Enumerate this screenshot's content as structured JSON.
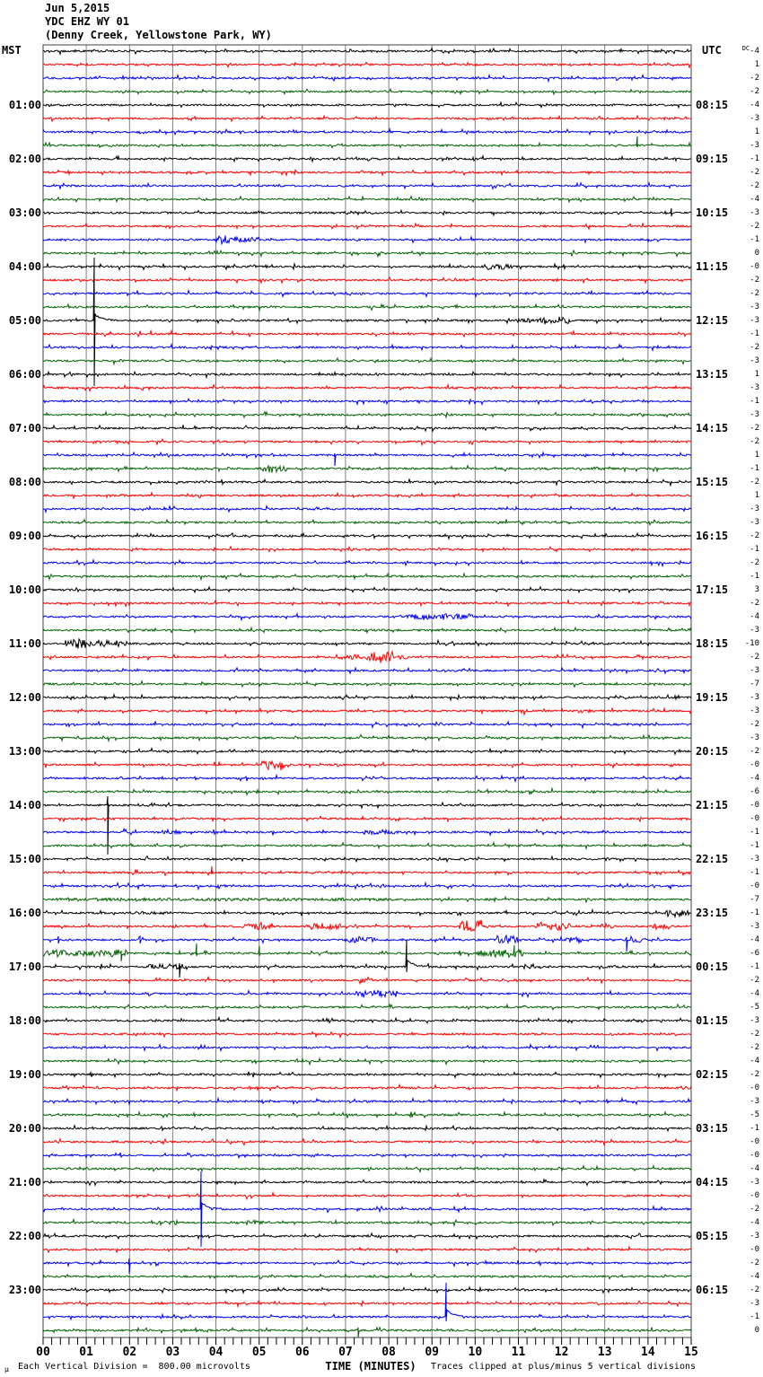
{
  "header": {
    "date": "Jun 5,2015",
    "station": "YDC EHZ WY 01",
    "location": "(Denny Creek, Yellowstone Park, WY)"
  },
  "axes": {
    "left_timezone": "MST",
    "right_timezone": "UTC",
    "x_title": "TIME (MINUTES)",
    "dc_header": "DC"
  },
  "footer": {
    "scale_glyph": "μ",
    "scale_note": "Each Vertical Division =  800.00 microvolts",
    "clip_note": "Traces clipped at plus/minus 5 vertical divisions"
  },
  "chart_data": {
    "type": "line",
    "title": "Helicorder seismogram YDC EHZ WY 01",
    "x_ticks": [
      "00",
      "01",
      "02",
      "03",
      "04",
      "05",
      "06",
      "07",
      "08",
      "09",
      "10",
      "11",
      "12",
      "13",
      "14",
      "15"
    ],
    "x_range_minutes": [
      0,
      15
    ],
    "minutes_per_row": 15,
    "rows_count": 96,
    "trace_spacing_px": 15,
    "clip_divisions": 5,
    "grid_color": "#808080",
    "border_color": "#404040",
    "colors": {
      "k": "#000000",
      "r": "#ff0000",
      "b": "#0000ff",
      "g": "#006400"
    },
    "rows": [
      {
        "c": "k",
        "dc": "-4",
        "dc_prefixed": true
      },
      {
        "c": "r",
        "dc": "1"
      },
      {
        "c": "b",
        "dc": "-2"
      },
      {
        "c": "g",
        "dc": "-2"
      },
      {
        "c": "k",
        "dc": "-4",
        "mst": "01:00",
        "utc": "08:15"
      },
      {
        "c": "r",
        "dc": "-3"
      },
      {
        "c": "b",
        "dc": "1"
      },
      {
        "c": "g",
        "dc": "-3",
        "spikes": [
          [
            13.75,
            10,
            2
          ]
        ]
      },
      {
        "c": "k",
        "dc": "-1",
        "mst": "02:00",
        "utc": "09:15"
      },
      {
        "c": "r",
        "dc": "-2"
      },
      {
        "c": "b",
        "dc": "-2"
      },
      {
        "c": "g",
        "dc": "-4"
      },
      {
        "c": "k",
        "dc": "-3",
        "mst": "03:00",
        "utc": "10:15",
        "spikes": [
          [
            14.54,
            5,
            4
          ]
        ]
      },
      {
        "c": "r",
        "dc": "-2"
      },
      {
        "c": "b",
        "dc": "-1",
        "bursts": [
          [
            4.0,
            4.6,
            6
          ],
          [
            4.6,
            5.05,
            3
          ]
        ]
      },
      {
        "c": "g",
        "dc": "0"
      },
      {
        "c": "k",
        "dc": "-0",
        "mst": "04:00",
        "utc": "11:15",
        "bursts": [
          [
            10.25,
            10.85,
            4
          ]
        ]
      },
      {
        "c": "r",
        "dc": "-2"
      },
      {
        "c": "b",
        "dc": "-2"
      },
      {
        "c": "g",
        "dc": "-3"
      },
      {
        "c": "k",
        "dc": "-3",
        "mst": "05:00",
        "utc": "12:15",
        "spikes": [
          [
            1.18,
            70,
            73
          ]
        ],
        "bursts": [
          [
            10.95,
            11.5,
            3
          ],
          [
            11.5,
            12.25,
            5
          ]
        ]
      },
      {
        "c": "r",
        "dc": "-1"
      },
      {
        "c": "b",
        "dc": "-2"
      },
      {
        "c": "g",
        "dc": "-3"
      },
      {
        "c": "k",
        "dc": "1",
        "mst": "06:00",
        "utc": "13:15"
      },
      {
        "c": "r",
        "dc": "-3"
      },
      {
        "c": "b",
        "dc": "-1"
      },
      {
        "c": "g",
        "dc": "-3"
      },
      {
        "c": "k",
        "dc": "-2",
        "mst": "07:00",
        "utc": "14:15"
      },
      {
        "c": "r",
        "dc": "-2"
      },
      {
        "c": "b",
        "dc": "1",
        "spikes": [
          [
            6.75,
            2,
            12
          ]
        ]
      },
      {
        "c": "g",
        "dc": "-1",
        "bursts": [
          [
            5.0,
            5.65,
            5
          ]
        ]
      },
      {
        "c": "k",
        "dc": "-2",
        "mst": "08:00",
        "utc": "15:15"
      },
      {
        "c": "r",
        "dc": "1"
      },
      {
        "c": "b",
        "dc": "-3"
      },
      {
        "c": "g",
        "dc": "-3"
      },
      {
        "c": "k",
        "dc": "-2",
        "mst": "09:00",
        "utc": "16:15"
      },
      {
        "c": "r",
        "dc": "-1"
      },
      {
        "c": "b",
        "dc": "-2"
      },
      {
        "c": "g",
        "dc": "-1"
      },
      {
        "c": "k",
        "dc": "3",
        "mst": "10:00",
        "utc": "17:15"
      },
      {
        "c": "r",
        "dc": "-2"
      },
      {
        "c": "b",
        "dc": "-4",
        "bursts": [
          [
            8.4,
            9.95,
            4
          ]
        ]
      },
      {
        "c": "g",
        "dc": "-3"
      },
      {
        "c": "k",
        "dc": "-10",
        "mst": "11:00",
        "utc": "18:15",
        "bursts": [
          [
            0.5,
            1.0,
            7
          ],
          [
            1.0,
            1.95,
            4
          ]
        ]
      },
      {
        "c": "r",
        "dc": "-2",
        "bursts": [
          [
            6.7,
            7.5,
            3
          ],
          [
            7.5,
            8.1,
            7
          ],
          [
            8.1,
            8.45,
            3
          ]
        ]
      },
      {
        "c": "b",
        "dc": "-3"
      },
      {
        "c": "g",
        "dc": "-7"
      },
      {
        "c": "k",
        "dc": "-3",
        "mst": "12:00",
        "utc": "19:15"
      },
      {
        "c": "r",
        "dc": "-3"
      },
      {
        "c": "b",
        "dc": "-2"
      },
      {
        "c": "g",
        "dc": "-3"
      },
      {
        "c": "k",
        "dc": "-2",
        "mst": "13:00",
        "utc": "20:15"
      },
      {
        "c": "r",
        "dc": "-0",
        "bursts": [
          [
            5.05,
            5.6,
            7
          ]
        ]
      },
      {
        "c": "b",
        "dc": "-4"
      },
      {
        "c": "g",
        "dc": "-6"
      },
      {
        "c": "k",
        "dc": "-0",
        "mst": "14:00",
        "utc": "21:15",
        "spikes": [
          [
            1.5,
            10,
            55
          ]
        ]
      },
      {
        "c": "r",
        "dc": "-0"
      },
      {
        "c": "b",
        "dc": "-1",
        "bursts": [
          [
            2.65,
            3.2,
            3
          ],
          [
            7.4,
            8.2,
            3
          ]
        ]
      },
      {
        "c": "g",
        "dc": "-1"
      },
      {
        "c": "k",
        "dc": "-3",
        "mst": "15:00",
        "utc": "22:15"
      },
      {
        "c": "r",
        "dc": "-1",
        "spikes": [
          [
            3.9,
            7,
            2
          ]
        ]
      },
      {
        "c": "b",
        "dc": "-0",
        "bursts": [
          [
            2.7,
            3.1,
            3
          ]
        ]
      },
      {
        "c": "g",
        "dc": "-7",
        "bursts": [
          [
            0.3,
            8.0,
            2
          ]
        ]
      },
      {
        "c": "k",
        "dc": "-1",
        "mst": "16:00",
        "utc": "23:15",
        "bursts": [
          [
            2.0,
            3.0,
            2
          ],
          [
            14.4,
            14.95,
            5
          ]
        ]
      },
      {
        "c": "r",
        "dc": "-3",
        "bursts": [
          [
            4.6,
            5.3,
            5
          ],
          [
            6.1,
            6.9,
            4
          ],
          [
            9.6,
            10.15,
            8
          ],
          [
            11.4,
            12.2,
            5
          ],
          [
            12.9,
            13.2,
            4
          ],
          [
            14.1,
            14.5,
            4
          ]
        ]
      },
      {
        "c": "b",
        "dc": "-4",
        "bursts": [
          [
            7.0,
            7.7,
            4
          ],
          [
            10.5,
            11.0,
            6
          ],
          [
            12.1,
            12.5,
            4
          ],
          [
            13.6,
            14.1,
            4
          ]
        ],
        "spikes": [
          [
            0.35,
            4,
            4
          ],
          [
            2.25,
            4,
            4
          ],
          [
            13.5,
            3,
            13
          ]
        ]
      },
      {
        "c": "g",
        "dc": "-6",
        "bursts": [
          [
            0.0,
            1.95,
            5
          ],
          [
            10.05,
            11.1,
            5
          ]
        ],
        "spikes": [
          [
            1.8,
            3,
            9
          ],
          [
            3.55,
            11,
            3
          ],
          [
            5.0,
            8,
            3
          ],
          [
            10.9,
            9,
            3
          ]
        ]
      },
      {
        "c": "k",
        "dc": "-1",
        "mst": "17:00",
        "utc": "00:15",
        "bursts": [
          [
            2.45,
            3.35,
            4
          ],
          [
            11.1,
            11.4,
            4
          ]
        ],
        "spikes": [
          [
            3.15,
            4,
            12
          ],
          [
            8.42,
            30,
            6
          ]
        ]
      },
      {
        "c": "r",
        "dc": "-2",
        "bursts": [
          [
            7.3,
            7.6,
            4
          ]
        ]
      },
      {
        "c": "b",
        "dc": "-4",
        "bursts": [
          [
            7.25,
            8.2,
            5
          ]
        ]
      },
      {
        "c": "g",
        "dc": "-5"
      },
      {
        "c": "k",
        "dc": "-3",
        "mst": "18:00",
        "utc": "01:15"
      },
      {
        "c": "r",
        "dc": "-2"
      },
      {
        "c": "b",
        "dc": "-2"
      },
      {
        "c": "g",
        "dc": "-4"
      },
      {
        "c": "k",
        "dc": "-2",
        "mst": "19:00",
        "utc": "02:15"
      },
      {
        "c": "r",
        "dc": "-0"
      },
      {
        "c": "b",
        "dc": "-3"
      },
      {
        "c": "g",
        "dc": "-5"
      },
      {
        "c": "k",
        "dc": "-1",
        "mst": "20:00",
        "utc": "03:15"
      },
      {
        "c": "r",
        "dc": "-0"
      },
      {
        "c": "b",
        "dc": "-0"
      },
      {
        "c": "g",
        "dc": "-4"
      },
      {
        "c": "k",
        "dc": "-3",
        "mst": "21:00",
        "utc": "04:15"
      },
      {
        "c": "r",
        "dc": "-0"
      },
      {
        "c": "b",
        "dc": "-2",
        "spikes": [
          [
            3.66,
            42,
            42
          ]
        ]
      },
      {
        "c": "g",
        "dc": "-4",
        "bursts": [
          [
            2.5,
            3.1,
            3
          ],
          [
            4.7,
            5.1,
            3
          ]
        ]
      },
      {
        "c": "k",
        "dc": "-3",
        "mst": "22:00",
        "utc": "05:15"
      },
      {
        "c": "r",
        "dc": "-0"
      },
      {
        "c": "b",
        "dc": "-2",
        "spikes": [
          [
            2.0,
            5,
            12
          ]
        ]
      },
      {
        "c": "g",
        "dc": "-4"
      },
      {
        "c": "k",
        "dc": "-2",
        "mst": "23:00",
        "utc": "06:15"
      },
      {
        "c": "r",
        "dc": "-3"
      },
      {
        "c": "b",
        "dc": "-1",
        "spikes": [
          [
            9.33,
            38,
            5
          ]
        ]
      },
      {
        "c": "g",
        "dc": "0",
        "spikes": [
          [
            7.3,
            3,
            8
          ]
        ]
      }
    ]
  }
}
